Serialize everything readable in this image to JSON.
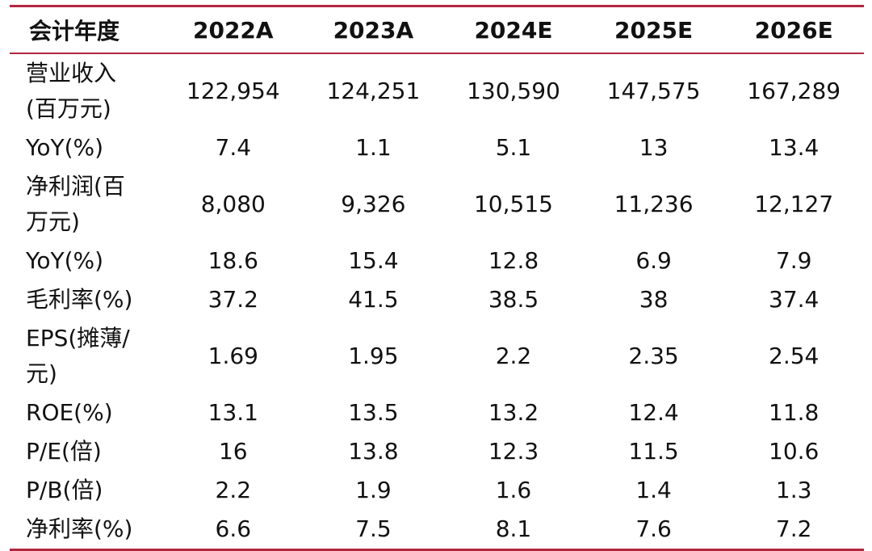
{
  "table": {
    "header": [
      "会计年度",
      "2022A",
      "2023A",
      "2024E",
      "2025E",
      "2026E"
    ],
    "rows": [
      {
        "label_lines": [
          "营业收入",
          "(百万元)"
        ],
        "values": [
          "122,954",
          "124,251",
          "130,590",
          "147,575",
          "167,289"
        ]
      },
      {
        "label_lines": [
          "YoY(%)"
        ],
        "values": [
          "7.4",
          "1.1",
          "5.1",
          "13",
          "13.4"
        ]
      },
      {
        "label_lines": [
          "净利润(百",
          "万元)"
        ],
        "values": [
          "8,080",
          "9,326",
          "10,515",
          "11,236",
          "12,127"
        ]
      },
      {
        "label_lines": [
          "YoY(%)"
        ],
        "values": [
          "18.6",
          "15.4",
          "12.8",
          "6.9",
          "7.9"
        ]
      },
      {
        "label_lines": [
          "毛利率(%)"
        ],
        "values": [
          "37.2",
          "41.5",
          "38.5",
          "38",
          "37.4"
        ]
      },
      {
        "label_lines": [
          "EPS(摊薄/",
          "元)"
        ],
        "values": [
          "1.69",
          "1.95",
          "2.2",
          "2.35",
          "2.54"
        ]
      },
      {
        "label_lines": [
          "ROE(%)"
        ],
        "values": [
          "13.1",
          "13.5",
          "13.2",
          "12.4",
          "11.8"
        ]
      },
      {
        "label_lines": [
          "P/E(倍)"
        ],
        "values": [
          "16",
          "13.8",
          "12.3",
          "11.5",
          "10.6"
        ]
      },
      {
        "label_lines": [
          "P/B(倍)"
        ],
        "values": [
          "2.2",
          "1.9",
          "1.6",
          "1.4",
          "1.3"
        ]
      },
      {
        "label_lines": [
          "净利率(%)"
        ],
        "values": [
          "6.6",
          "7.5",
          "8.1",
          "7.6",
          "7.2"
        ]
      }
    ]
  },
  "colors": {
    "rule": "#b3263f",
    "text": "#111111",
    "background": "#ffffff"
  }
}
